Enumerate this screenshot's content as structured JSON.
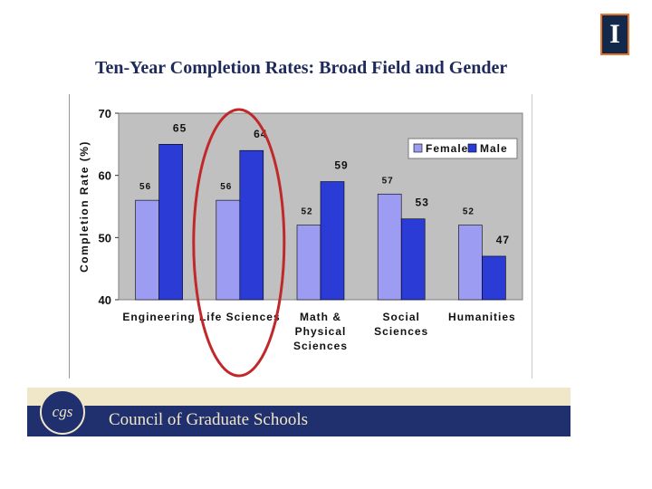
{
  "slide": {
    "title": "Ten-Year Completion Rates: Broad Field and Gender",
    "logo_letter": "I",
    "footer_org": "Council of Graduate Schools",
    "footer_seal_text": "cgs"
  },
  "colors": {
    "female": "#9c9cf3",
    "male": "#2a3bd6",
    "plot_bg": "#c0c0c0",
    "highlight_circle": "#c0282a"
  },
  "chart_data": {
    "type": "bar",
    "title": "",
    "ylabel": "Completion Rate (%)",
    "xlabel": "",
    "ylim": [
      40,
      70
    ],
    "yticks": [
      "40",
      "50",
      "60",
      "70"
    ],
    "grid": false,
    "legend_position": "top-right",
    "categories": [
      [
        "Engineering"
      ],
      [
        "Life Sciences"
      ],
      [
        "Math &",
        "Physical",
        "Sciences"
      ],
      [
        "Social",
        "Sciences"
      ],
      [
        "Humanities"
      ]
    ],
    "series": [
      {
        "name": "Female",
        "values": [
          56,
          56,
          52,
          57,
          52
        ]
      },
      {
        "name": "Male",
        "values": [
          65,
          64,
          59,
          53,
          47
        ]
      }
    ],
    "highlighted_category_index": 1
  }
}
